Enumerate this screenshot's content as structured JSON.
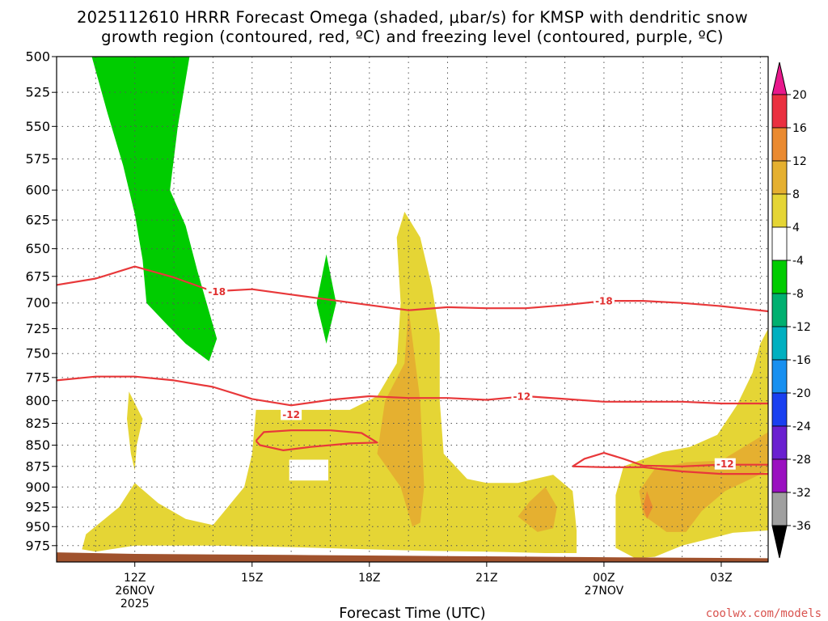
{
  "chart_data": {
    "type": "time-height cross section",
    "title_line1": "2025112610 HRRR Forecast Omega (shaded, μbar/s) for KMSP with dendritic snow",
    "title_line2": "growth region (contoured, red, ºC) and freezing level (contoured, purple, ºC)",
    "xlabel": "Forecast Time (UTC)",
    "credit": "coolwx.com/models",
    "x_units": "hours after 12Z 26 Nov 2025",
    "xlim": [
      -2,
      16.2
    ],
    "ylim_hpa": [
      500,
      997
    ],
    "y_ticks": [
      500,
      525,
      550,
      575,
      600,
      625,
      650,
      675,
      700,
      725,
      750,
      775,
      800,
      825,
      850,
      875,
      900,
      925,
      950,
      975
    ],
    "x_ticks": [
      {
        "h": 0,
        "lines": [
          "12Z",
          "26NOV",
          "2025"
        ]
      },
      {
        "h": 3,
        "lines": [
          "15Z"
        ]
      },
      {
        "h": 6,
        "lines": [
          "18Z"
        ]
      },
      {
        "h": 9,
        "lines": [
          "21Z"
        ]
      },
      {
        "h": 12,
        "lines": [
          "00Z",
          "27NOV"
        ]
      },
      {
        "h": 15,
        "lines": [
          "03Z"
        ]
      }
    ],
    "colorbar": {
      "labels": [
        "20",
        "16",
        "12",
        "8",
        "4",
        "-4",
        "-8",
        "-12",
        "-16",
        "-20",
        "-24",
        "-28",
        "-32",
        "-36"
      ],
      "top_color": "#e8188c",
      "bottom_color": "#000000",
      "colors": [
        "#ea3040",
        "#ea8a30",
        "#e5b030",
        "#e5d535",
        "#ffffff",
        "#00cc00",
        "#00b070",
        "#00b0c0",
        "#1890f0",
        "#1a40f0",
        "#6a20d0",
        "#9a10c0",
        "#a0a0a0"
      ]
    },
    "omega_regions": [
      {
        "level": "-8 to -4",
        "color": "#00cc00",
        "points": [
          [
            -1.1,
            500
          ],
          [
            1.4,
            500
          ],
          [
            1.1,
            550
          ],
          [
            0.9,
            600
          ],
          [
            1.3,
            630
          ],
          [
            1.6,
            670
          ],
          [
            2.1,
            735
          ],
          [
            1.9,
            758
          ],
          [
            1.3,
            740
          ],
          [
            0.8,
            720
          ],
          [
            0.3,
            700
          ],
          [
            0.2,
            660
          ],
          [
            0.0,
            620
          ],
          [
            -0.3,
            580
          ],
          [
            -0.7,
            540
          ]
        ]
      },
      {
        "level": "-8 to -4",
        "color": "#00cc00",
        "points": [
          [
            4.9,
            655
          ],
          [
            5.15,
            700
          ],
          [
            4.9,
            740
          ],
          [
            4.65,
            700
          ]
        ]
      },
      {
        "level": "4 to 8",
        "color": "#e5d535",
        "points": [
          [
            -0.15,
            790
          ],
          [
            0.2,
            820
          ],
          [
            0.05,
            850
          ],
          [
            0.0,
            880
          ],
          [
            -0.1,
            860
          ],
          [
            -0.2,
            820
          ]
        ]
      },
      {
        "level": "4 to 8",
        "color": "#e5d535",
        "points": [
          [
            -1.35,
            980
          ],
          [
            -1.25,
            960
          ],
          [
            -0.4,
            925
          ],
          [
            0.0,
            895
          ],
          [
            0.6,
            920
          ],
          [
            1.3,
            940
          ],
          [
            2.0,
            948
          ],
          [
            2.8,
            900
          ],
          [
            3.0,
            860
          ],
          [
            3.1,
            810
          ],
          [
            4.0,
            810
          ],
          [
            4.8,
            810
          ],
          [
            5.5,
            810
          ],
          [
            6.2,
            795
          ],
          [
            6.7,
            760
          ],
          [
            6.8,
            700
          ],
          [
            6.7,
            640
          ],
          [
            6.9,
            618
          ],
          [
            7.3,
            640
          ],
          [
            7.6,
            685
          ],
          [
            7.8,
            730
          ],
          [
            7.8,
            800
          ],
          [
            7.9,
            860
          ],
          [
            8.5,
            890
          ],
          [
            9.0,
            895
          ],
          [
            9.8,
            895
          ],
          [
            10.7,
            885
          ],
          [
            11.2,
            905
          ],
          [
            11.3,
            955
          ],
          [
            11.3,
            985
          ],
          [
            10.5,
            985
          ],
          [
            9.0,
            983
          ],
          [
            7.5,
            982
          ],
          [
            6.0,
            980
          ],
          [
            4.0,
            977
          ],
          [
            2.0,
            975
          ],
          [
            0.0,
            975
          ],
          [
            -1.0,
            983
          ]
        ]
      },
      {
        "level": "4 to 8",
        "color": "#e5d535",
        "points": [
          [
            12.3,
            978
          ],
          [
            12.3,
            910
          ],
          [
            12.5,
            875
          ],
          [
            13.5,
            858
          ],
          [
            14.2,
            852
          ],
          [
            14.9,
            838
          ],
          [
            15.4,
            805
          ],
          [
            15.8,
            770
          ],
          [
            16.0,
            740
          ],
          [
            16.2,
            725
          ],
          [
            16.2,
            955
          ],
          [
            15.3,
            958
          ],
          [
            14.0,
            975
          ],
          [
            13.3,
            990
          ],
          [
            12.8,
            992
          ]
        ]
      },
      {
        "level": "8 to 12",
        "color": "#e5b030",
        "points": [
          [
            7.0,
            705
          ],
          [
            7.3,
            800
          ],
          [
            7.4,
            900
          ],
          [
            7.3,
            945
          ],
          [
            7.1,
            950
          ],
          [
            6.8,
            900
          ],
          [
            6.2,
            860
          ],
          [
            6.4,
            800
          ],
          [
            6.9,
            760
          ]
        ]
      },
      {
        "level": "8 to 12",
        "color": "#e5b030",
        "points": [
          [
            9.8,
            937
          ],
          [
            10.1,
            918
          ],
          [
            10.5,
            900
          ],
          [
            10.8,
            925
          ],
          [
            10.7,
            952
          ],
          [
            10.3,
            957
          ]
        ]
      },
      {
        "level": "8 to 12",
        "color": "#e5b030",
        "points": [
          [
            13.6,
            957
          ],
          [
            13.0,
            935
          ],
          [
            12.9,
            905
          ],
          [
            13.3,
            878
          ],
          [
            14.1,
            870
          ],
          [
            15.0,
            868
          ],
          [
            16.2,
            835
          ],
          [
            16.2,
            880
          ],
          [
            15.1,
            905
          ],
          [
            14.5,
            930
          ],
          [
            14.1,
            957
          ]
        ]
      },
      {
        "level": "12 to 16",
        "color": "#ea8a30",
        "points": [
          [
            13.1,
            905
          ],
          [
            13.25,
            925
          ],
          [
            13.1,
            940
          ],
          [
            13.0,
            925
          ]
        ]
      },
      {
        "level": "0",
        "color": "#ffffff",
        "points": [
          [
            3.95,
            867
          ],
          [
            4.95,
            867
          ],
          [
            4.95,
            892
          ],
          [
            3.95,
            892
          ]
        ]
      }
    ],
    "contours": [
      {
        "value": -18,
        "label": "-18",
        "color": "#e8383a",
        "points": [
          [
            -2.0,
            683
          ],
          [
            -1.0,
            677
          ],
          [
            0.0,
            666
          ],
          [
            1.0,
            676
          ],
          [
            2.0,
            689
          ],
          [
            3.0,
            687
          ],
          [
            4.0,
            692
          ],
          [
            5.0,
            697
          ],
          [
            6.0,
            702
          ],
          [
            7.0,
            707
          ],
          [
            8.0,
            704
          ],
          [
            9.0,
            705
          ],
          [
            10.0,
            705
          ],
          [
            11.0,
            702
          ],
          [
            12.0,
            698
          ],
          [
            13.0,
            698
          ],
          [
            14.0,
            700
          ],
          [
            15.0,
            703
          ],
          [
            16.2,
            708
          ]
        ],
        "label_at": [
          [
            2.1,
            689
          ],
          [
            12.0,
            698
          ]
        ]
      },
      {
        "value": -12,
        "label": "-12",
        "color": "#e8383a",
        "points": [
          [
            -2.0,
            778
          ],
          [
            -1.0,
            774
          ],
          [
            0.0,
            774
          ],
          [
            1.0,
            778
          ],
          [
            2.0,
            785
          ],
          [
            3.0,
            798
          ],
          [
            4.0,
            805
          ],
          [
            5.0,
            799
          ],
          [
            6.0,
            795
          ],
          [
            7.0,
            797
          ],
          [
            8.0,
            797
          ],
          [
            9.0,
            799
          ],
          [
            10.0,
            795
          ],
          [
            11.0,
            798
          ],
          [
            12.0,
            801
          ],
          [
            13.0,
            801
          ],
          [
            14.0,
            801
          ],
          [
            15.0,
            803
          ],
          [
            16.2,
            803
          ]
        ],
        "label_at": [
          [
            4.0,
            815
          ],
          [
            9.9,
            795
          ]
        ]
      },
      {
        "value": -12,
        "label": "",
        "color": "#e8383a",
        "points": [
          [
            3.1,
            845
          ],
          [
            3.3,
            835
          ],
          [
            4.0,
            833
          ],
          [
            5.0,
            833
          ],
          [
            5.8,
            836
          ],
          [
            6.2,
            847
          ],
          [
            5.5,
            848
          ],
          [
            4.5,
            852
          ],
          [
            3.8,
            856
          ],
          [
            3.2,
            850
          ],
          [
            3.1,
            845
          ]
        ]
      },
      {
        "value": -12,
        "label": "-12",
        "color": "#e8383a",
        "points": [
          [
            11.2,
            875
          ],
          [
            11.5,
            866
          ],
          [
            12.0,
            859
          ],
          [
            12.5,
            866
          ],
          [
            13.0,
            874
          ],
          [
            14.0,
            875
          ],
          [
            15.0,
            873
          ],
          [
            16.2,
            873
          ]
        ],
        "label_at": [
          [
            15.1,
            872
          ]
        ]
      },
      {
        "value": -12,
        "label": "",
        "color": "#e8383a",
        "points": [
          [
            11.2,
            875
          ],
          [
            12.0,
            876
          ],
          [
            13.0,
            876
          ],
          [
            14.0,
            881
          ],
          [
            15.0,
            884
          ],
          [
            16.2,
            884
          ]
        ]
      }
    ],
    "ground_color": "#a0522d"
  }
}
